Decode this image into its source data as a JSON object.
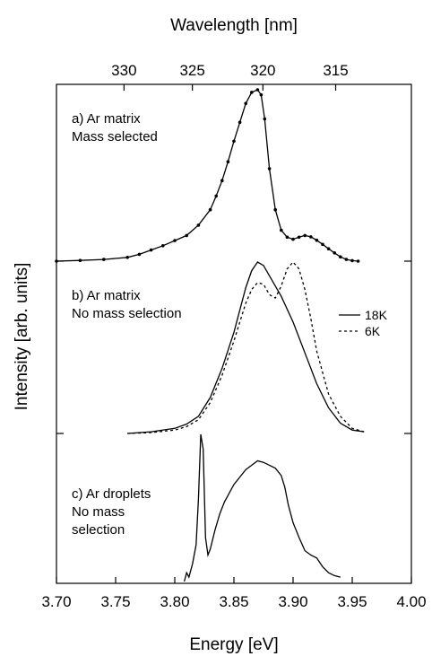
{
  "chart_data": {
    "type": "line",
    "xlabel": "Energy [eV]",
    "x2label": "Wavelength [nm]",
    "ylabel": "Intensity [arb. units]",
    "xlim": [
      3.7,
      4.0
    ],
    "xticks": [
      "3.70",
      "3.75",
      "3.80",
      "3.85",
      "3.90",
      "3.95",
      "4.00"
    ],
    "x2ticks": [
      {
        "label": "330",
        "wavelength_nm": 330
      },
      {
        "label": "325",
        "wavelength_nm": 325
      },
      {
        "label": "320",
        "wavelength_nm": 320
      },
      {
        "label": "315",
        "wavelength_nm": 315
      }
    ],
    "panels": [
      {
        "id": "a",
        "annotation": [
          "a) Ar matrix",
          "Mass selected"
        ],
        "ylim": [
          0,
          1.0
        ],
        "series": [
          {
            "style": "solid-with-markers",
            "x": [
              3.7,
              3.72,
              3.74,
              3.76,
              3.77,
              3.78,
              3.79,
              3.8,
              3.81,
              3.82,
              3.83,
              3.835,
              3.84,
              3.845,
              3.85,
              3.855,
              3.86,
              3.865,
              3.87,
              3.873,
              3.876,
              3.88,
              3.885,
              3.89,
              3.895,
              3.9,
              3.905,
              3.91,
              3.915,
              3.92,
              3.925,
              3.93,
              3.935,
              3.94,
              3.945,
              3.95,
              3.955
            ],
            "y": [
              0.0,
              0.004,
              0.01,
              0.022,
              0.04,
              0.065,
              0.09,
              0.12,
              0.15,
              0.21,
              0.3,
              0.38,
              0.47,
              0.58,
              0.7,
              0.81,
              0.92,
              0.985,
              1.0,
              0.97,
              0.83,
              0.54,
              0.3,
              0.18,
              0.14,
              0.128,
              0.14,
              0.15,
              0.142,
              0.122,
              0.098,
              0.072,
              0.048,
              0.025,
              0.01,
              0.003,
              0.0
            ]
          }
        ]
      },
      {
        "id": "b",
        "annotation": [
          "b) Ar matrix",
          "No mass selection"
        ],
        "ylim": [
          0,
          1.0
        ],
        "series": [
          {
            "name": "18K",
            "style": "solid",
            "x": [
              3.76,
              3.78,
              3.8,
              3.81,
              3.82,
              3.83,
              3.84,
              3.85,
              3.86,
              3.865,
              3.87,
              3.875,
              3.88,
              3.89,
              3.9,
              3.91,
              3.92,
              3.93,
              3.94,
              3.95,
              3.96
            ],
            "y": [
              0.0,
              0.01,
              0.03,
              0.055,
              0.1,
              0.21,
              0.38,
              0.59,
              0.85,
              0.95,
              1.0,
              0.98,
              0.92,
              0.8,
              0.65,
              0.47,
              0.29,
              0.15,
              0.06,
              0.02,
              0.01
            ]
          },
          {
            "name": "6K",
            "style": "dashed",
            "x": [
              3.76,
              3.78,
              3.8,
              3.81,
              3.82,
              3.83,
              3.84,
              3.85,
              3.86,
              3.865,
              3.87,
              3.875,
              3.88,
              3.885,
              3.89,
              3.895,
              3.9,
              3.905,
              3.91,
              3.915,
              3.92,
              3.93,
              3.94,
              3.95,
              3.96
            ],
            "y": [
              0.0,
              0.005,
              0.02,
              0.04,
              0.08,
              0.18,
              0.34,
              0.54,
              0.76,
              0.84,
              0.88,
              0.87,
              0.81,
              0.79,
              0.86,
              0.96,
              1.0,
              0.96,
              0.84,
              0.67,
              0.48,
              0.23,
              0.1,
              0.03,
              0.01
            ]
          }
        ]
      },
      {
        "id": "c",
        "annotation": [
          "c) Ar droplets",
          "No mass",
          "selection"
        ],
        "ylim": [
          0,
          1.0
        ],
        "series": [
          {
            "style": "solid",
            "x": [
              3.808,
              3.81,
              3.812,
              3.815,
              3.818,
              3.82,
              3.822,
              3.824,
              3.826,
              3.828,
              3.83,
              3.834,
              3.838,
              3.842,
              3.846,
              3.85,
              3.855,
              3.86,
              3.865,
              3.87,
              3.875,
              3.88,
              3.885,
              3.89,
              3.893,
              3.896,
              3.9,
              3.905,
              3.91,
              3.915,
              3.92,
              3.925,
              3.93,
              3.935,
              3.94
            ],
            "y": [
              0.0,
              0.06,
              0.03,
              0.12,
              0.25,
              0.56,
              1.0,
              0.9,
              0.3,
              0.18,
              0.22,
              0.35,
              0.46,
              0.54,
              0.6,
              0.66,
              0.71,
              0.76,
              0.79,
              0.82,
              0.81,
              0.79,
              0.77,
              0.72,
              0.64,
              0.52,
              0.4,
              0.3,
              0.21,
              0.18,
              0.16,
              0.1,
              0.06,
              0.04,
              0.03
            ]
          }
        ]
      }
    ],
    "legend": {
      "entries": [
        "18K",
        "6K"
      ],
      "panel": "b",
      "placement": "right"
    },
    "grid": false
  }
}
